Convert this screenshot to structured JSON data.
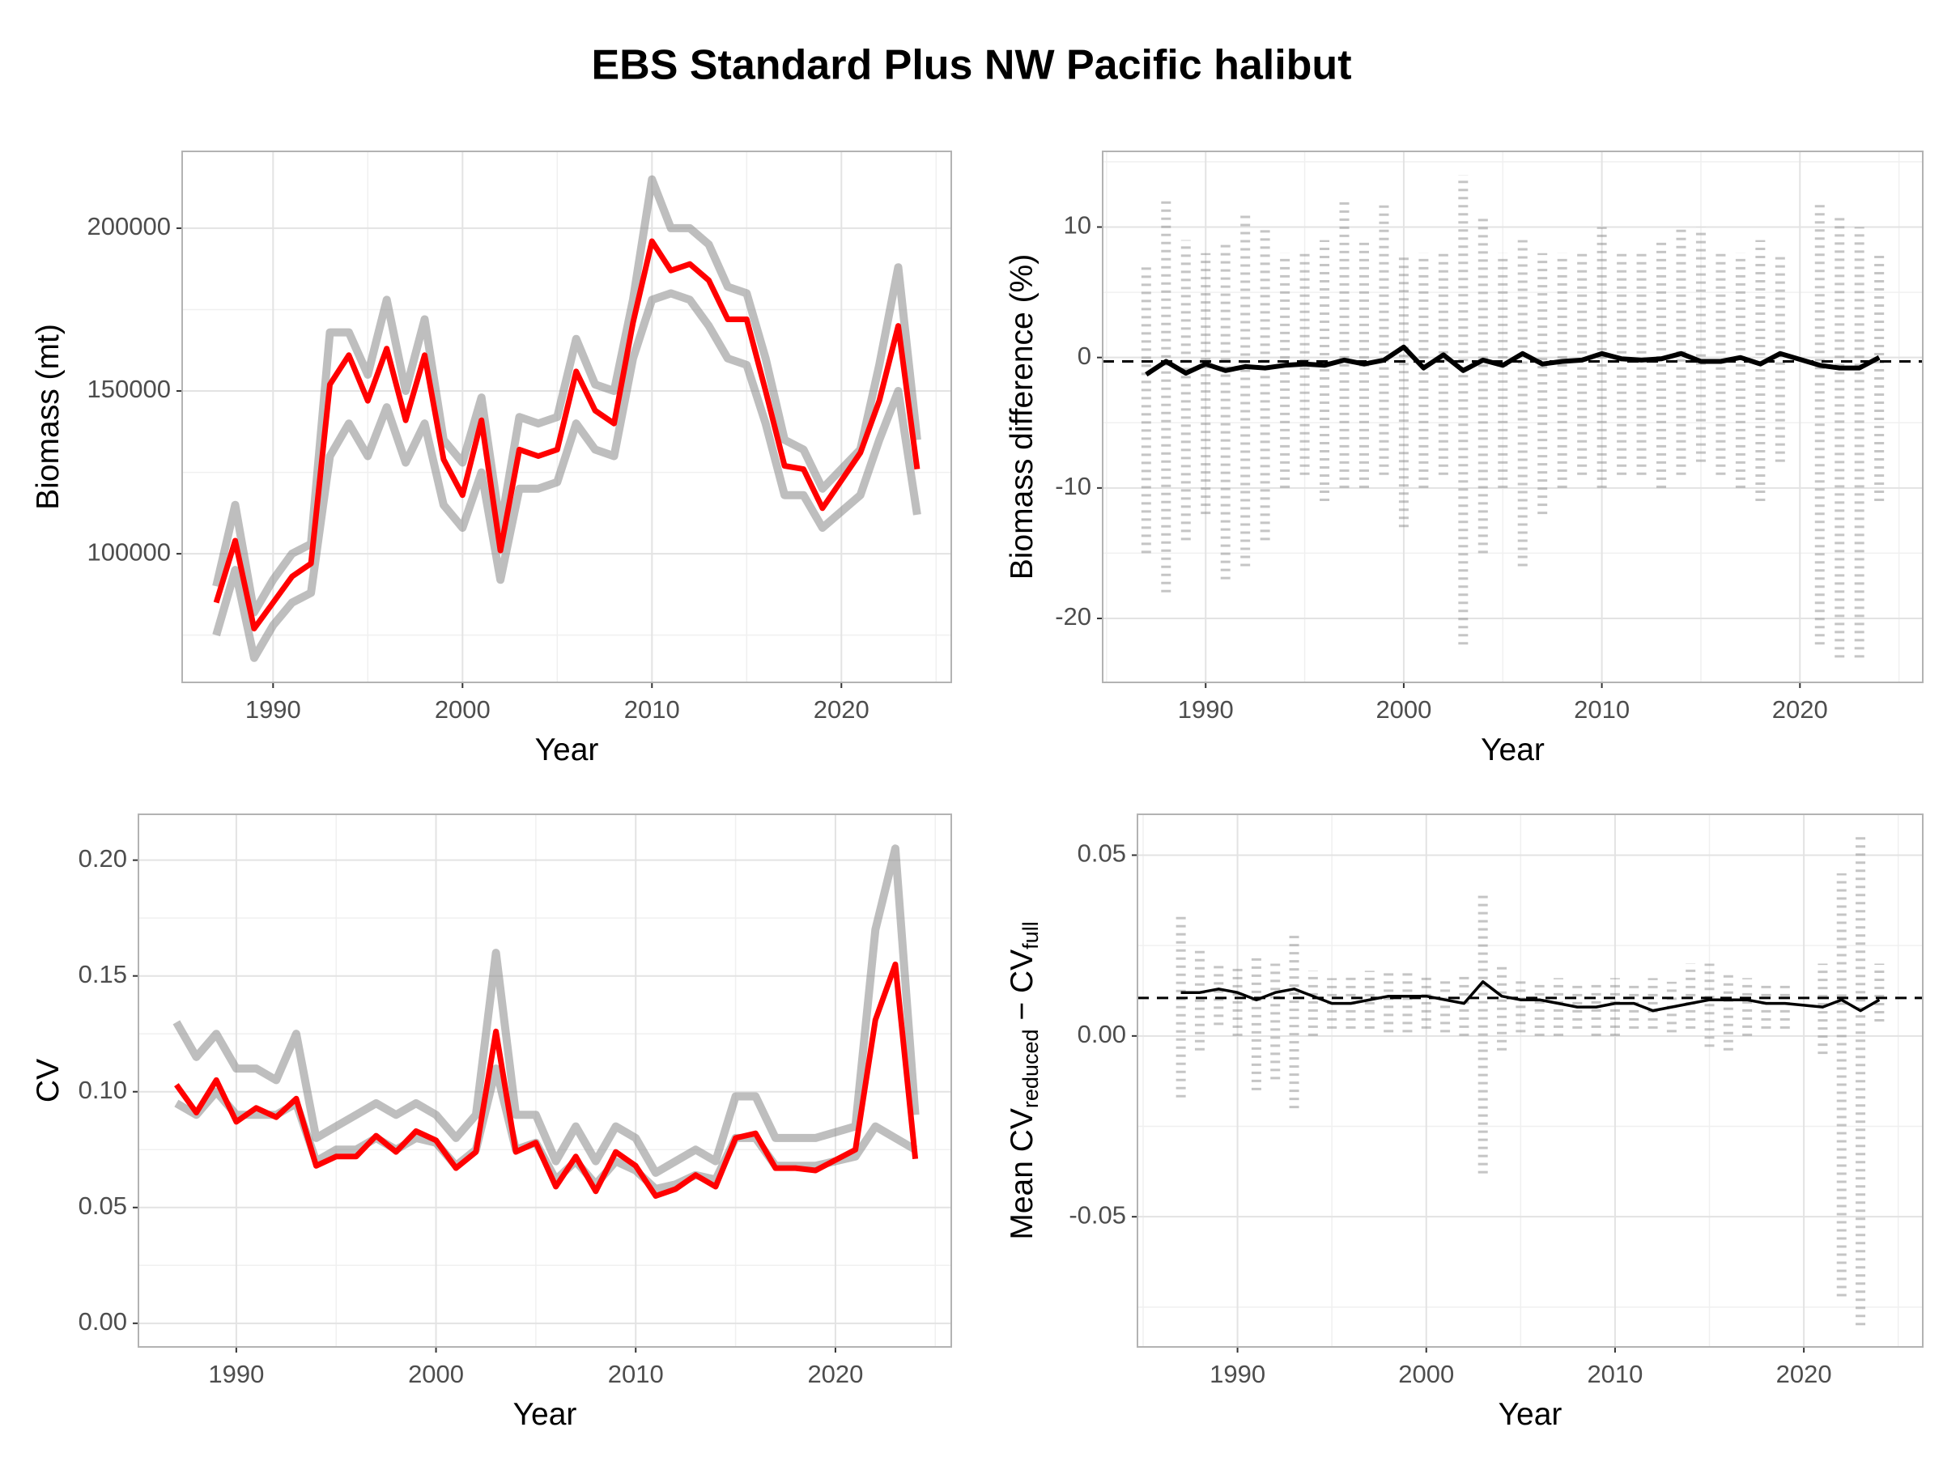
{
  "title": "EBS Standard Plus NW Pacific halibut",
  "chart_data": [
    {
      "type": "line",
      "xlabel": "Year",
      "ylabel": [
        "Biomass (mt)"
      ],
      "x": [
        1987,
        1988,
        1989,
        1990,
        1991,
        1992,
        1993,
        1994,
        1995,
        1996,
        1997,
        1998,
        1999,
        2000,
        2001,
        2002,
        2003,
        2004,
        2005,
        2006,
        2007,
        2008,
        2009,
        2010,
        2011,
        2012,
        2013,
        2014,
        2015,
        2016,
        2017,
        2018,
        2019,
        2021,
        2022,
        2023,
        2024
      ],
      "xlim": [
        1985.2,
        2025.8
      ],
      "xticks": [
        1990,
        2000,
        2010,
        2020
      ],
      "ylim": [
        60500,
        223600
      ],
      "yticks": [
        100000,
        150000,
        200000
      ],
      "grid": true,
      "series": [
        {
          "color": "#888888",
          "values": [
            90000,
            115000,
            82000,
            92000,
            100000,
            103000,
            168000,
            168000,
            155000,
            178000,
            150000,
            172000,
            135000,
            128000,
            148000,
            108000,
            142000,
            140000,
            142000,
            166000,
            152000,
            150000,
            178000,
            215000,
            200000,
            200000,
            195000,
            182000,
            180000,
            160000,
            135000,
            132000,
            120000,
            132000,
            158000,
            188000,
            135000
          ]
        },
        {
          "color": "#888888",
          "values": [
            75000,
            95000,
            68000,
            78000,
            85000,
            88000,
            130000,
            140000,
            130000,
            145000,
            128000,
            140000,
            115000,
            108000,
            125000,
            92000,
            120000,
            120000,
            122000,
            140000,
            132000,
            130000,
            160000,
            178000,
            180000,
            178000,
            170000,
            160000,
            158000,
            140000,
            118000,
            118000,
            108000,
            118000,
            135000,
            150000,
            112000
          ]
        },
        {
          "color": "#ff0000",
          "values": [
            85000,
            104000,
            77000,
            85000,
            93000,
            97000,
            152000,
            161000,
            147000,
            163000,
            141000,
            161000,
            129000,
            118000,
            141000,
            101000,
            132000,
            130000,
            132000,
            156000,
            144000,
            140000,
            171000,
            196000,
            187000,
            189000,
            184000,
            172000,
            172000,
            150000,
            127000,
            126000,
            114000,
            131000,
            147000,
            170000,
            126000
          ]
        }
      ]
    },
    {
      "type": "scatter",
      "xlabel": "Year",
      "ylabel": [
        "Biomass difference (%)"
      ],
      "x": [
        1987,
        1988,
        1989,
        1990,
        1991,
        1992,
        1993,
        1994,
        1995,
        1996,
        1997,
        1998,
        1999,
        2000,
        2001,
        2002,
        2003,
        2004,
        2005,
        2006,
        2007,
        2008,
        2009,
        2010,
        2011,
        2012,
        2013,
        2014,
        2015,
        2016,
        2017,
        2018,
        2019,
        2021,
        2022,
        2023,
        2024
      ],
      "xlim": [
        1984.8,
        2026.2
      ],
      "xticks": [
        1990,
        2000,
        2010,
        2020
      ],
      "ylim": [
        -24.9,
        15.8
      ],
      "yticks": [
        -20,
        -10,
        0,
        10
      ],
      "grid": true,
      "hline": -0.3,
      "ranges": {
        "color": "#808080",
        "low": [
          -15,
          -18,
          -14,
          -12,
          -17,
          -16,
          -14,
          -10,
          -9,
          -11,
          -10,
          -10,
          -9,
          -13,
          -10,
          -9,
          -22,
          -15,
          -10,
          -16,
          -12,
          -10,
          -9,
          -10,
          -9,
          -9,
          -10,
          -9,
          -8,
          -9,
          -10,
          -11,
          -8,
          -22,
          -23,
          -23,
          -11
        ],
        "high": [
          7,
          12,
          9,
          8,
          9,
          11,
          10,
          8,
          8,
          9,
          12,
          9,
          12,
          8,
          8,
          8,
          14,
          11,
          8,
          9,
          8,
          8,
          8,
          10,
          8,
          8,
          9,
          10,
          10,
          8,
          8,
          9,
          8,
          12,
          11,
          10,
          8
        ]
      },
      "series": [
        {
          "color": "#000000",
          "values": [
            -1.3,
            -0.3,
            -1.2,
            -0.5,
            -1.0,
            -0.7,
            -0.8,
            -0.6,
            -0.5,
            -0.6,
            -0.2,
            -0.5,
            -0.2,
            0.8,
            -0.8,
            0.2,
            -1.0,
            -0.2,
            -0.6,
            0.3,
            -0.5,
            -0.3,
            -0.2,
            0.3,
            -0.1,
            -0.2,
            -0.1,
            0.3,
            -0.3,
            -0.3,
            0,
            -0.5,
            0.3,
            -0.6,
            -0.8,
            -0.8,
            0
          ]
        }
      ]
    },
    {
      "type": "line",
      "xlabel": "Year",
      "ylabel": [
        "CV"
      ],
      "x": [
        1987,
        1988,
        1989,
        1990,
        1991,
        1992,
        1993,
        1994,
        1995,
        1996,
        1997,
        1998,
        1999,
        2000,
        2001,
        2002,
        2003,
        2004,
        2005,
        2006,
        2007,
        2008,
        2009,
        2010,
        2011,
        2012,
        2013,
        2014,
        2015,
        2016,
        2017,
        2018,
        2019,
        2021,
        2022,
        2023,
        2024
      ],
      "xlim": [
        1985.1,
        2025.8
      ],
      "xticks": [
        1990,
        2000,
        2010,
        2020
      ],
      "ylim": [
        -0.0102,
        0.2198
      ],
      "yticks": [
        {
          "value": 0,
          "label": "0.00"
        },
        {
          "value": 0.05,
          "label": "0.05"
        },
        {
          "value": 0.1,
          "label": "0.10"
        },
        {
          "value": 0.15,
          "label": "0.15"
        },
        {
          "value": 0.2,
          "label": "0.20"
        }
      ],
      "grid": true,
      "series": [
        {
          "color": "#888888",
          "values": [
            0.13,
            0.115,
            0.125,
            0.11,
            0.11,
            0.105,
            0.125,
            0.08,
            0.085,
            0.09,
            0.095,
            0.09,
            0.095,
            0.09,
            0.08,
            0.09,
            0.16,
            0.09,
            0.09,
            0.07,
            0.085,
            0.07,
            0.085,
            0.08,
            0.065,
            0.07,
            0.075,
            0.07,
            0.098,
            0.098,
            0.08,
            0.08,
            0.08,
            0.085,
            0.17,
            0.205,
            0.09
          ]
        },
        {
          "color": "#888888",
          "values": [
            0.095,
            0.09,
            0.1,
            0.09,
            0.09,
            0.09,
            0.095,
            0.07,
            0.075,
            0.075,
            0.08,
            0.075,
            0.08,
            0.078,
            0.068,
            0.075,
            0.11,
            0.075,
            0.078,
            0.062,
            0.07,
            0.06,
            0.07,
            0.066,
            0.058,
            0.06,
            0.064,
            0.062,
            0.08,
            0.08,
            0.068,
            0.068,
            0.068,
            0.072,
            0.085,
            0.08,
            0.075
          ]
        },
        {
          "color": "#ff0000",
          "values": [
            0.103,
            0.091,
            0.105,
            0.087,
            0.093,
            0.089,
            0.097,
            0.068,
            0.072,
            0.072,
            0.081,
            0.074,
            0.083,
            0.079,
            0.067,
            0.074,
            0.126,
            0.074,
            0.078,
            0.059,
            0.072,
            0.057,
            0.074,
            0.068,
            0.055,
            0.058,
            0.064,
            0.059,
            0.08,
            0.082,
            0.067,
            0.067,
            0.066,
            0.075,
            0.131,
            0.155,
            0.071
          ]
        }
      ]
    },
    {
      "type": "scatter",
      "xlabel": "Year",
      "ylabel": [
        "Mean CV",
        "reduced",
        " − CV",
        "full"
      ],
      "x": [
        1987,
        1988,
        1989,
        1990,
        1991,
        1992,
        1993,
        1994,
        1995,
        1996,
        1997,
        1998,
        1999,
        2000,
        2001,
        2002,
        2003,
        2004,
        2005,
        2006,
        2007,
        2008,
        2009,
        2010,
        2011,
        2012,
        2013,
        2014,
        2015,
        2016,
        2017,
        2018,
        2019,
        2021,
        2022,
        2023,
        2024
      ],
      "xlim": [
        1984.7,
        2026.3
      ],
      "xticks": [
        1990,
        2000,
        2010,
        2020
      ],
      "ylim": [
        -0.086,
        0.0613
      ],
      "yticks": [
        {
          "value": -0.05,
          "label": "-0.05"
        },
        {
          "value": 0,
          "label": "0.00"
        },
        {
          "value": 0.05,
          "label": "0.05"
        }
      ],
      "grid": true,
      "hline": 0.0105,
      "ranges": {
        "color": "#808080",
        "low": [
          -0.017,
          -0.004,
          0.003,
          0.0,
          -0.015,
          -0.012,
          -0.02,
          0.0,
          0.002,
          0.002,
          0.002,
          0.001,
          0.001,
          0.002,
          0.001,
          0.0,
          -0.038,
          -0.004,
          0.001,
          0.0,
          0.0,
          0.002,
          0.0,
          0.0,
          0.002,
          0.002,
          0.001,
          0.002,
          -0.003,
          -0.004,
          0.0,
          0.002,
          0.002,
          -0.005,
          -0.072,
          -0.08,
          0.004
        ],
        "high": [
          0.033,
          0.025,
          0.02,
          0.02,
          0.022,
          0.02,
          0.029,
          0.018,
          0.016,
          0.017,
          0.018,
          0.018,
          0.018,
          0.017,
          0.016,
          0.017,
          0.04,
          0.02,
          0.016,
          0.015,
          0.016,
          0.015,
          0.015,
          0.016,
          0.014,
          0.016,
          0.015,
          0.02,
          0.02,
          0.018,
          0.016,
          0.015,
          0.015,
          0.02,
          0.045,
          0.055,
          0.02
        ]
      },
      "series": [
        {
          "color": "#000000",
          "values": [
            0.012,
            0.012,
            0.013,
            0.012,
            0.01,
            0.012,
            0.013,
            0.011,
            0.009,
            0.009,
            0.01,
            0.011,
            0.011,
            0.011,
            0.01,
            0.009,
            0.015,
            0.011,
            0.01,
            0.01,
            0.009,
            0.008,
            0.008,
            0.009,
            0.009,
            0.007,
            0.008,
            0.009,
            0.01,
            0.01,
            0.01,
            0.009,
            0.009,
            0.008,
            0.01,
            0.007,
            0.01
          ]
        }
      ]
    }
  ]
}
